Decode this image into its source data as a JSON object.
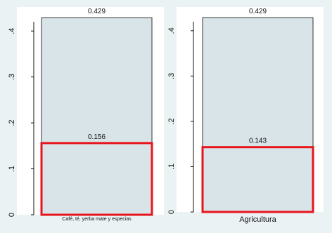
{
  "chart_data": [
    {
      "type": "bar",
      "categories": [
        "Café, té, yerba mate y especias"
      ],
      "series": [
        {
          "values": [
            0.429
          ],
          "color": "#d8e4e8",
          "stroke": "#333333"
        },
        {
          "values": [
            0.156
          ],
          "color": "none",
          "stroke": "#e8141c"
        }
      ],
      "data_labels": [
        "0.429",
        "0.156"
      ],
      "ylim": [
        0,
        0.44
      ],
      "yticks": [
        0,
        0.1,
        0.2,
        0.3,
        0.4
      ],
      "ytick_labels": [
        "0",
        ".1",
        ".2",
        ".3",
        ".4"
      ],
      "grid": false
    },
    {
      "type": "bar",
      "categories": [
        "Agricultura"
      ],
      "series": [
        {
          "values": [
            0.429
          ],
          "color": "#d8e4e8",
          "stroke": "#333333"
        },
        {
          "values": [
            0.143
          ],
          "color": "none",
          "stroke": "#e8141c"
        }
      ],
      "data_labels": [
        "0.429",
        "0.143"
      ],
      "ylim": [
        0,
        0.44
      ],
      "yticks": [
        0,
        0.1,
        0.2,
        0.3,
        0.4
      ],
      "ytick_labels": [
        "0",
        ".1",
        ".2",
        ".3",
        ".4"
      ],
      "grid": false
    }
  ]
}
